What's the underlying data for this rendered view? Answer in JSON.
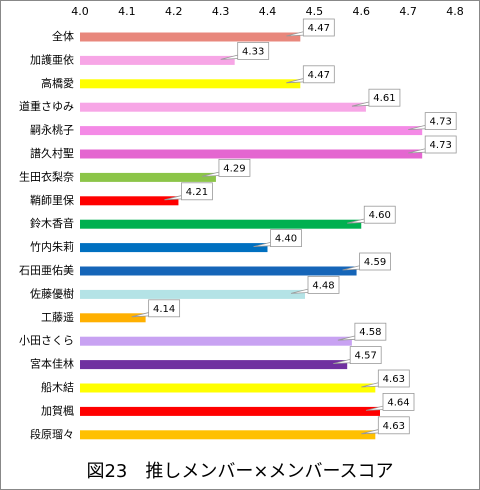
{
  "chart_data": {
    "type": "bar",
    "orientation": "horizontal",
    "title": "図23　推しメンバー×メンバースコア",
    "categories": [
      "全体",
      "加護亜依",
      "高橋愛",
      "道重さゆみ",
      "嗣永桃子",
      "譜久村聖",
      "生田衣梨奈",
      "鞘師里保",
      "鈴木香音",
      "竹内朱莉",
      "石田亜佑美",
      "佐藤優樹",
      "工藤遥",
      "小田さくら",
      "宮本佳林",
      "船木結",
      "加賀楓",
      "段原瑠々"
    ],
    "values": [
      4.47,
      4.33,
      4.47,
      4.61,
      4.73,
      4.73,
      4.29,
      4.21,
      4.6,
      4.4,
      4.59,
      4.48,
      4.14,
      4.58,
      4.57,
      4.63,
      4.64,
      4.63
    ],
    "value_labels": [
      "4.47",
      "4.33",
      "4.47",
      "4.61",
      "4.73",
      "4.73",
      "4.29",
      "4.21",
      "4.60",
      "4.40",
      "4.59",
      "4.48",
      "4.14",
      "4.58",
      "4.57",
      "4.63",
      "4.64",
      "4.63"
    ],
    "colors": [
      "#e8877c",
      "#f7a6e6",
      "#ffff00",
      "#f7a6e6",
      "#f48ae6",
      "#e466d0",
      "#8cc548",
      "#ff0000",
      "#00b050",
      "#0070c0",
      "#1565b8",
      "#b4e3e6",
      "#ffb000",
      "#c8a2f2",
      "#7030a0",
      "#ffff00",
      "#ff0000",
      "#ffc000"
    ],
    "xlim": [
      4,
      4.8
    ],
    "xticks": [
      {
        "value": 4,
        "label": "4.0"
      },
      4.1,
      4.2,
      4.3,
      4.4,
      4.5,
      4.6,
      4.7,
      4.8
    ],
    "grid": false
  }
}
